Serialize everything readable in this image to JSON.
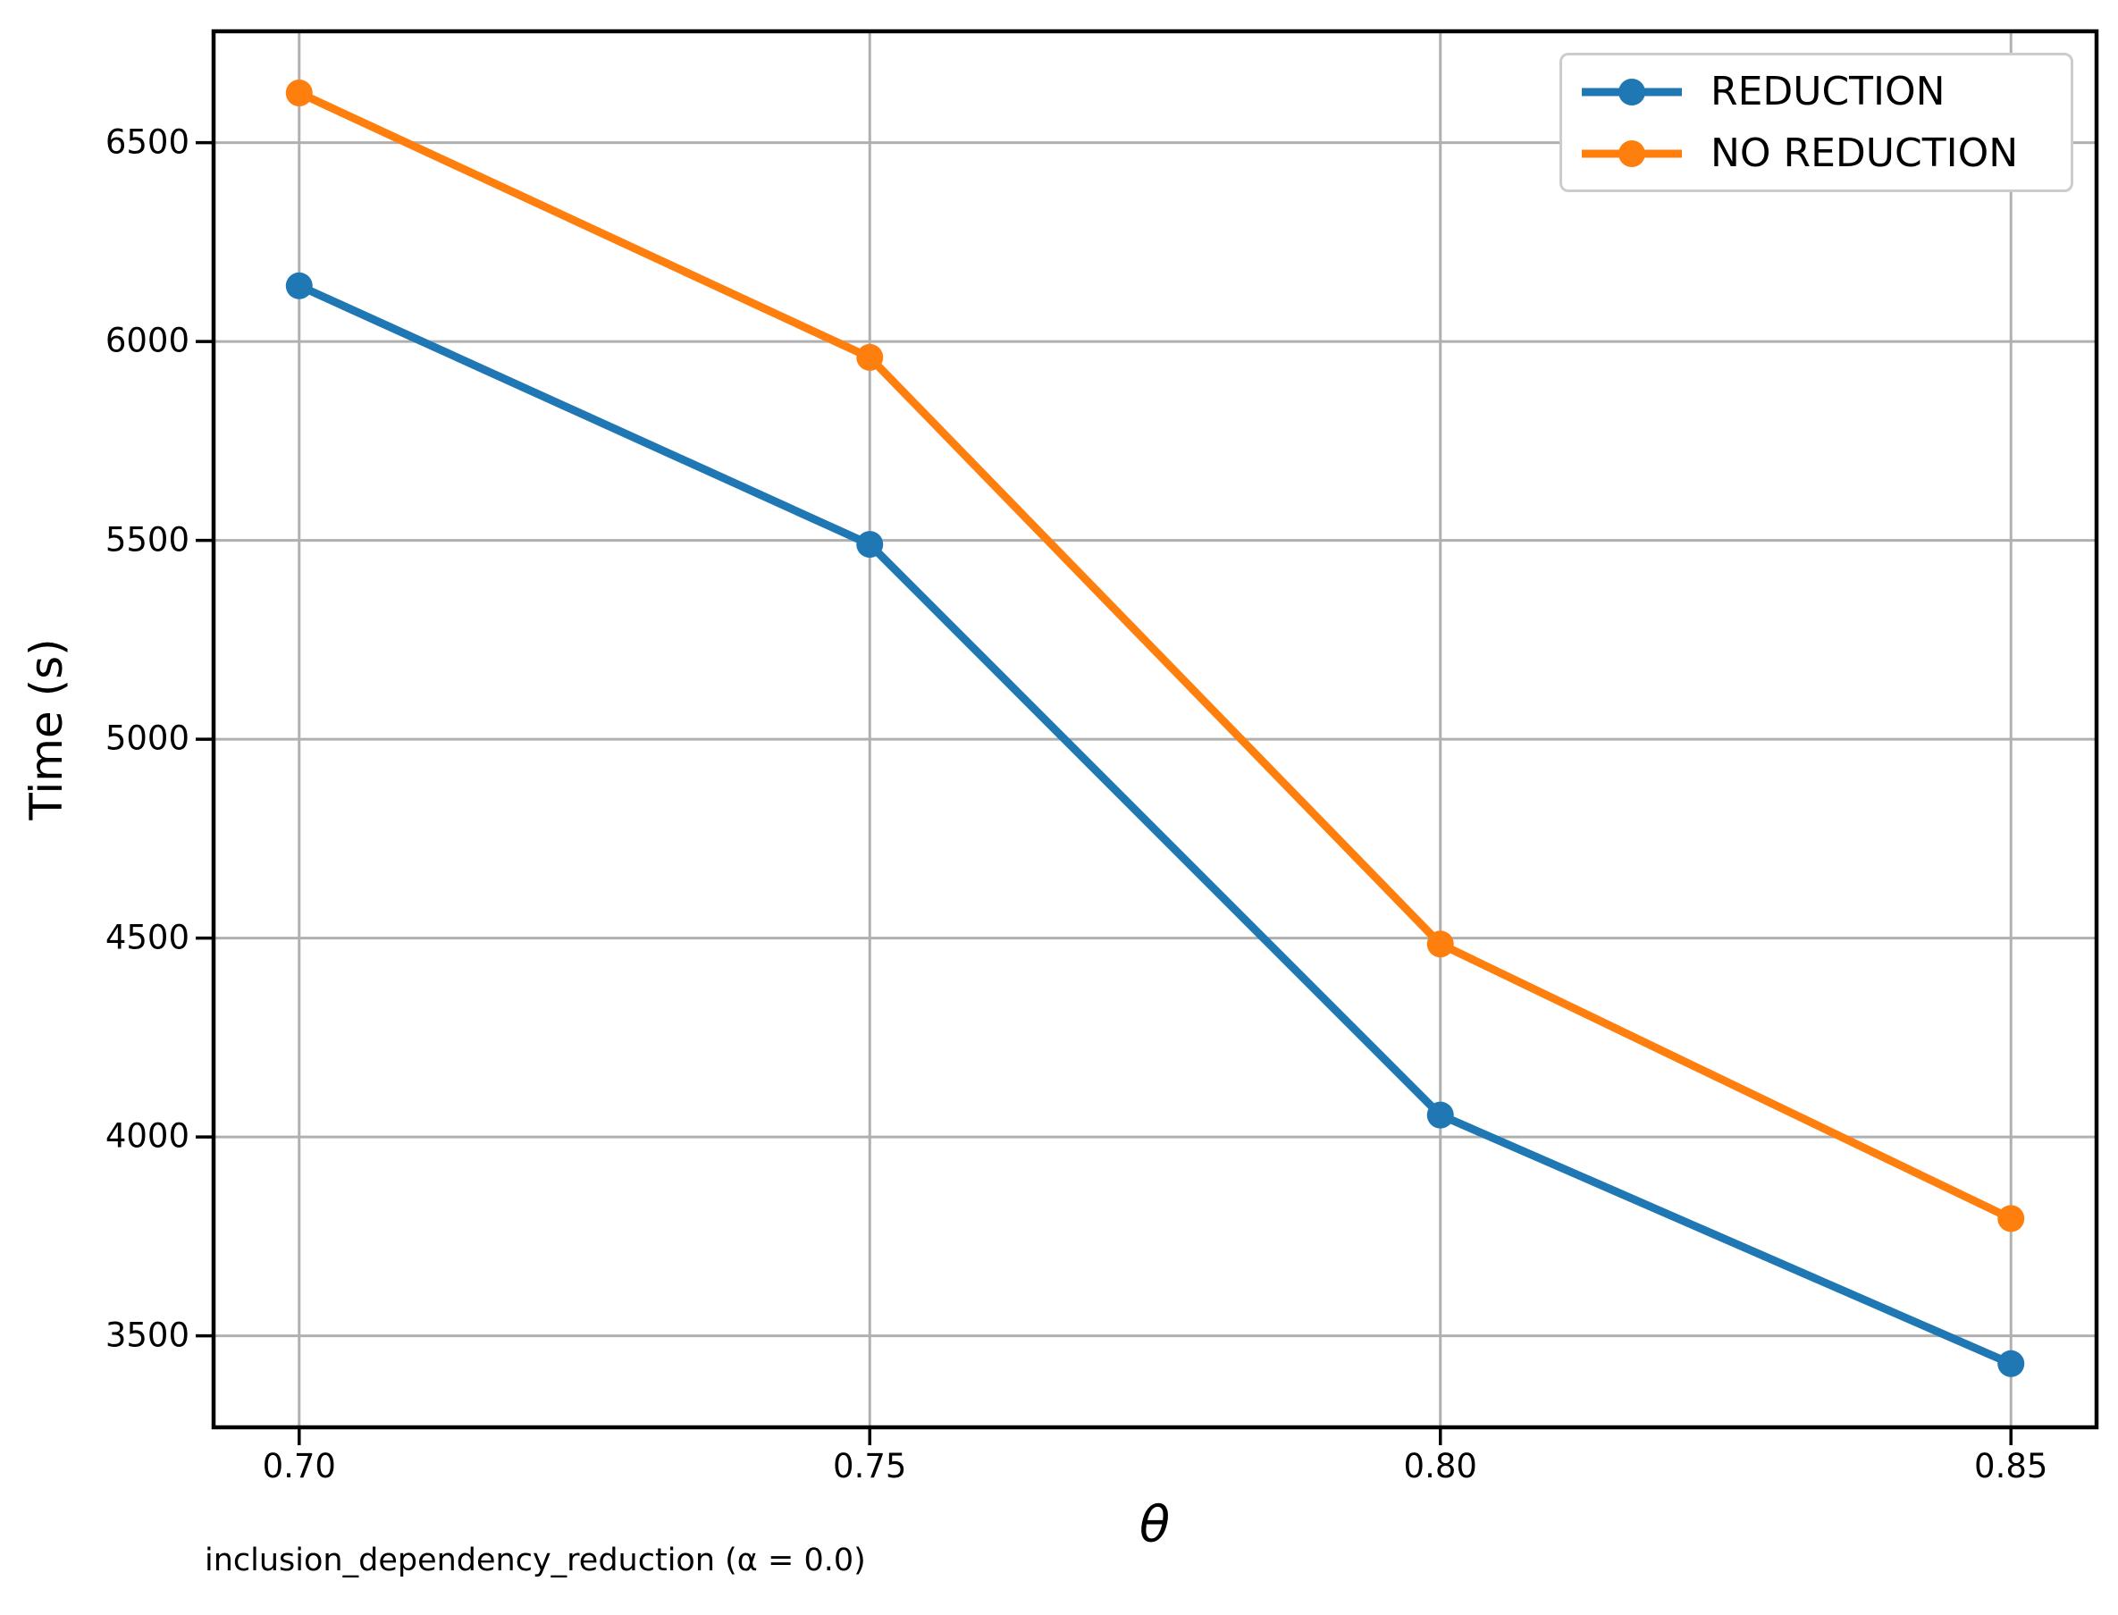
{
  "figure": {
    "background": "#ffffff",
    "caption": "inclusion_dependency_reduction (α = 0.0)"
  },
  "chart_data": {
    "type": "line",
    "title": "",
    "xlabel": "θ",
    "ylabel": "Time (s)",
    "x": [
      0.7,
      0.75,
      0.8,
      0.85
    ],
    "x_tick_labels": [
      "0.70",
      "0.75",
      "0.80",
      "0.85"
    ],
    "y_ticks": [
      3500,
      4000,
      4500,
      5000,
      5500,
      6000,
      6500
    ],
    "xlim": [
      0.6925,
      0.8575
    ],
    "ylim": [
      3270,
      6780
    ],
    "grid": true,
    "legend_position": "upper right",
    "series": [
      {
        "name": "REDUCTION",
        "color": "#1f77b4",
        "values": [
          6140,
          5490,
          4055,
          3430
        ]
      },
      {
        "name": "NO REDUCTION",
        "color": "#ff7f0e",
        "values": [
          6625,
          5960,
          4485,
          3795
        ]
      }
    ],
    "grid_color": "#b0b0b0",
    "spine_color": "#000000",
    "marker": "circle"
  }
}
